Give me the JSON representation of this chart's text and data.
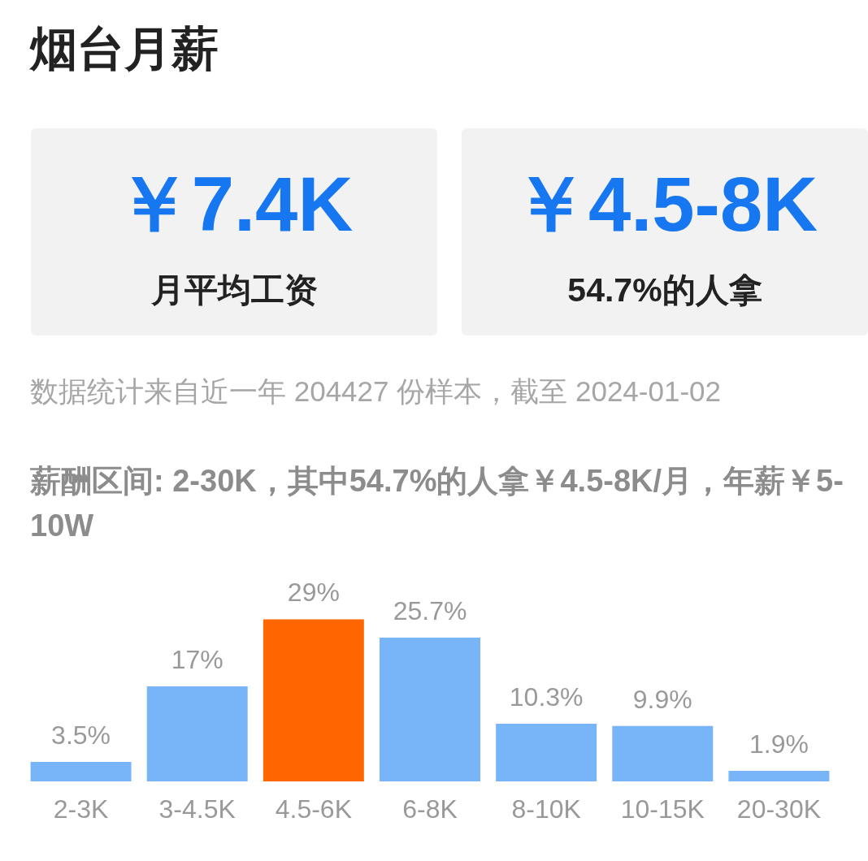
{
  "chart_data": [
    {
      "type": "other",
      "title": "烟台月薪",
      "annotations": [
        "￥7.4K",
        "月平均工资",
        "￥4.5-8K",
        "54.7%的人拿",
        "数据统计来自近一年 204427 份样本，截至 2024-01-02"
      ]
    },
    {
      "type": "bar",
      "title": "薪酬区间: 2-30K，其中54.7%的人拿￥4.5-8K/月，年薪￥5-10W",
      "categories": [
        "2-3K",
        "3-4.5K",
        "4.5-6K",
        "6-8K",
        "8-10K",
        "10-15K",
        "20-30K"
      ],
      "values": [
        3.5,
        17,
        29,
        25.7,
        10.3,
        9.9,
        1.9
      ],
      "colors": [
        "#78b4f8",
        "#78b4f8",
        "#ff6600",
        "#78b4f8",
        "#78b4f8",
        "#78b4f8",
        "#78b4f8"
      ],
      "value_labels": [
        "3.5%",
        "17%",
        "29%",
        "25.7%",
        "10.3%",
        "9.9%",
        "1.9%"
      ]
    }
  ]
}
